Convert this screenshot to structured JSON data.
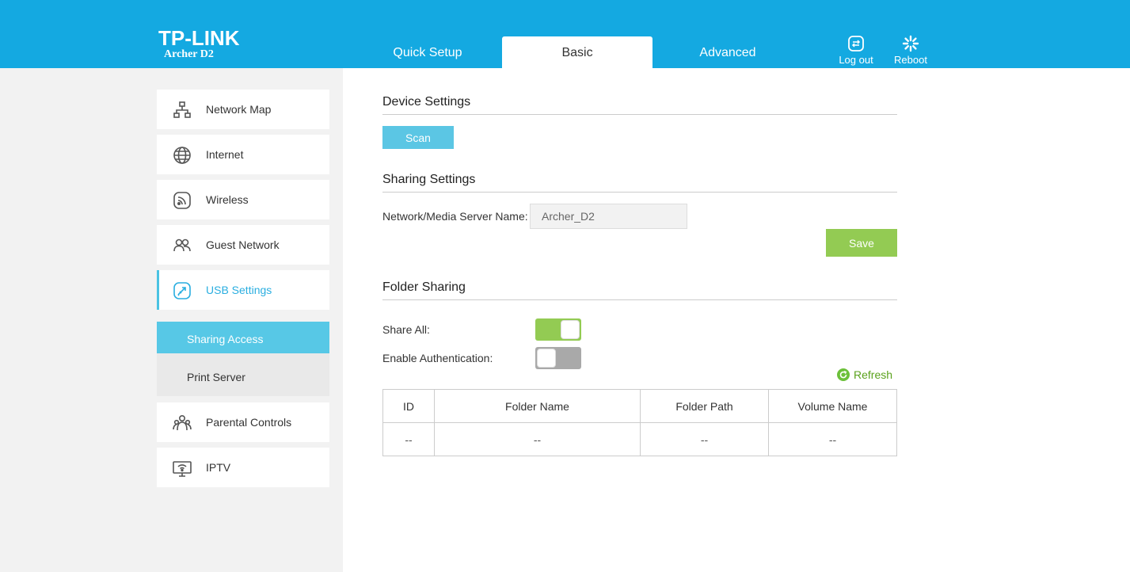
{
  "header": {
    "brand": "TP-LINK",
    "model": "Archer D2",
    "tabs": [
      {
        "label": "Quick Setup"
      },
      {
        "label": "Basic"
      },
      {
        "label": "Advanced"
      }
    ],
    "logout_label": "Log out",
    "reboot_label": "Reboot"
  },
  "sidebar": {
    "items": [
      {
        "label": "Network Map",
        "icon": "network-map-icon"
      },
      {
        "label": "Internet",
        "icon": "globe-icon"
      },
      {
        "label": "Wireless",
        "icon": "wireless-icon"
      },
      {
        "label": "Guest Network",
        "icon": "guest-icon"
      },
      {
        "label": "USB Settings",
        "icon": "usb-icon"
      },
      {
        "label": "Parental Controls",
        "icon": "parental-icon"
      },
      {
        "label": "IPTV",
        "icon": "iptv-icon"
      }
    ],
    "sub_items": [
      {
        "label": "Sharing Access"
      },
      {
        "label": "Print Server"
      }
    ]
  },
  "main": {
    "device_settings": {
      "title": "Device Settings",
      "scan_label": "Scan"
    },
    "sharing_settings": {
      "title": "Sharing Settings",
      "server_name_label": "Network/Media Server Name:",
      "server_name_value": "Archer_D2",
      "save_label": "Save"
    },
    "folder_sharing": {
      "title": "Folder Sharing",
      "share_all_label": "Share All:",
      "share_all_on": true,
      "auth_label": "Enable Authentication:",
      "auth_on": false,
      "refresh_label": "Refresh",
      "columns": [
        "ID",
        "Folder Name",
        "Folder Path",
        "Volume Name"
      ],
      "rows": [
        [
          "--",
          "--",
          "--",
          "--"
        ]
      ]
    }
  },
  "colors": {
    "header_blue": "#14a9e1",
    "accent_cyan": "#57c8e6",
    "save_green": "#93cb53",
    "refresh_green": "#5aa21c"
  }
}
